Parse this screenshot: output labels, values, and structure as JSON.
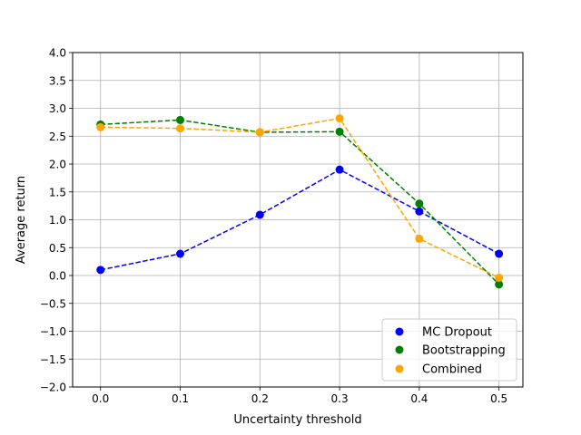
{
  "chart_data": {
    "type": "line",
    "title": "",
    "xlabel": "Uncertainty threshold",
    "ylabel": "Average return",
    "x": [
      0.0,
      0.1,
      0.2,
      0.3,
      0.4,
      0.5
    ],
    "x_ticks": [
      "0.0",
      "0.1",
      "0.2",
      "0.3",
      "0.4",
      "0.5"
    ],
    "y_ticks": [
      "4.0",
      "3.5",
      "3.0",
      "2.5",
      "2.0",
      "1.5",
      "1.0",
      "0.5",
      "0.0",
      "−0.5",
      "−1.0",
      "−1.5",
      "−2.0"
    ],
    "xlim": [
      -0.035,
      0.53
    ],
    "ylim": [
      -2.0,
      4.0
    ],
    "grid": true,
    "legend_position": "lower-right",
    "series": [
      {
        "name": "MC Dropout",
        "color": "#0000ff",
        "values": [
          0.1,
          0.39,
          1.09,
          1.9,
          1.15,
          0.39
        ]
      },
      {
        "name": "Bootstrapping",
        "color": "#008000",
        "values": [
          2.71,
          2.79,
          2.57,
          2.58,
          1.29,
          -0.16
        ]
      },
      {
        "name": "Combined",
        "color": "#ffa500",
        "values": [
          2.66,
          2.64,
          2.57,
          2.82,
          0.66,
          -0.04
        ]
      }
    ]
  }
}
